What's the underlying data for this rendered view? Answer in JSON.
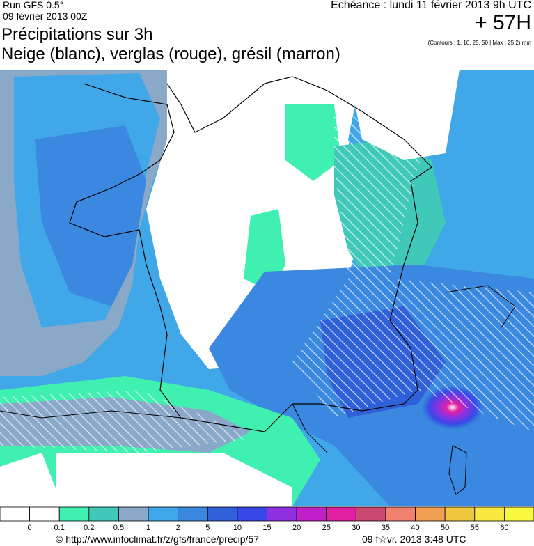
{
  "header": {
    "run": "Run GFS 0.5°",
    "date": "09 février 2013 00Z",
    "title": "Précipitations sur 3h",
    "subtitle": "Neige (blanc), verglas (rouge), grésil (marron)",
    "echeance": "Echéance : lundi 11 février 2013 9h UTC",
    "lead": "+ 57H",
    "contours": "(Contours : 1, 10, 25, 50 | Max : 25.2) mm"
  },
  "legend": {
    "labels": [
      "0",
      "0.1",
      "0.2",
      "0.5",
      "1",
      "2",
      "5",
      "10",
      "15",
      "20",
      "25",
      "30",
      "35",
      "40",
      "50",
      "55",
      "60"
    ],
    "colors": [
      "#ffffff",
      "#ffffff",
      "#40f0b0",
      "#40c8b8",
      "#8aa8c8",
      "#40a8e8",
      "#3a88e0",
      "#3060d8",
      "#3848e8",
      "#9030e0",
      "#c020c8",
      "#e020a0",
      "#c84870",
      "#f08070",
      "#f0a050",
      "#f0c840",
      "#f8e840",
      "#f8f840"
    ]
  },
  "footer": {
    "url": "© http://www.infoclimat.fr/z/gfs/france/precip/57",
    "time": "09 f☆vr. 2013  3:48 UTC"
  }
}
